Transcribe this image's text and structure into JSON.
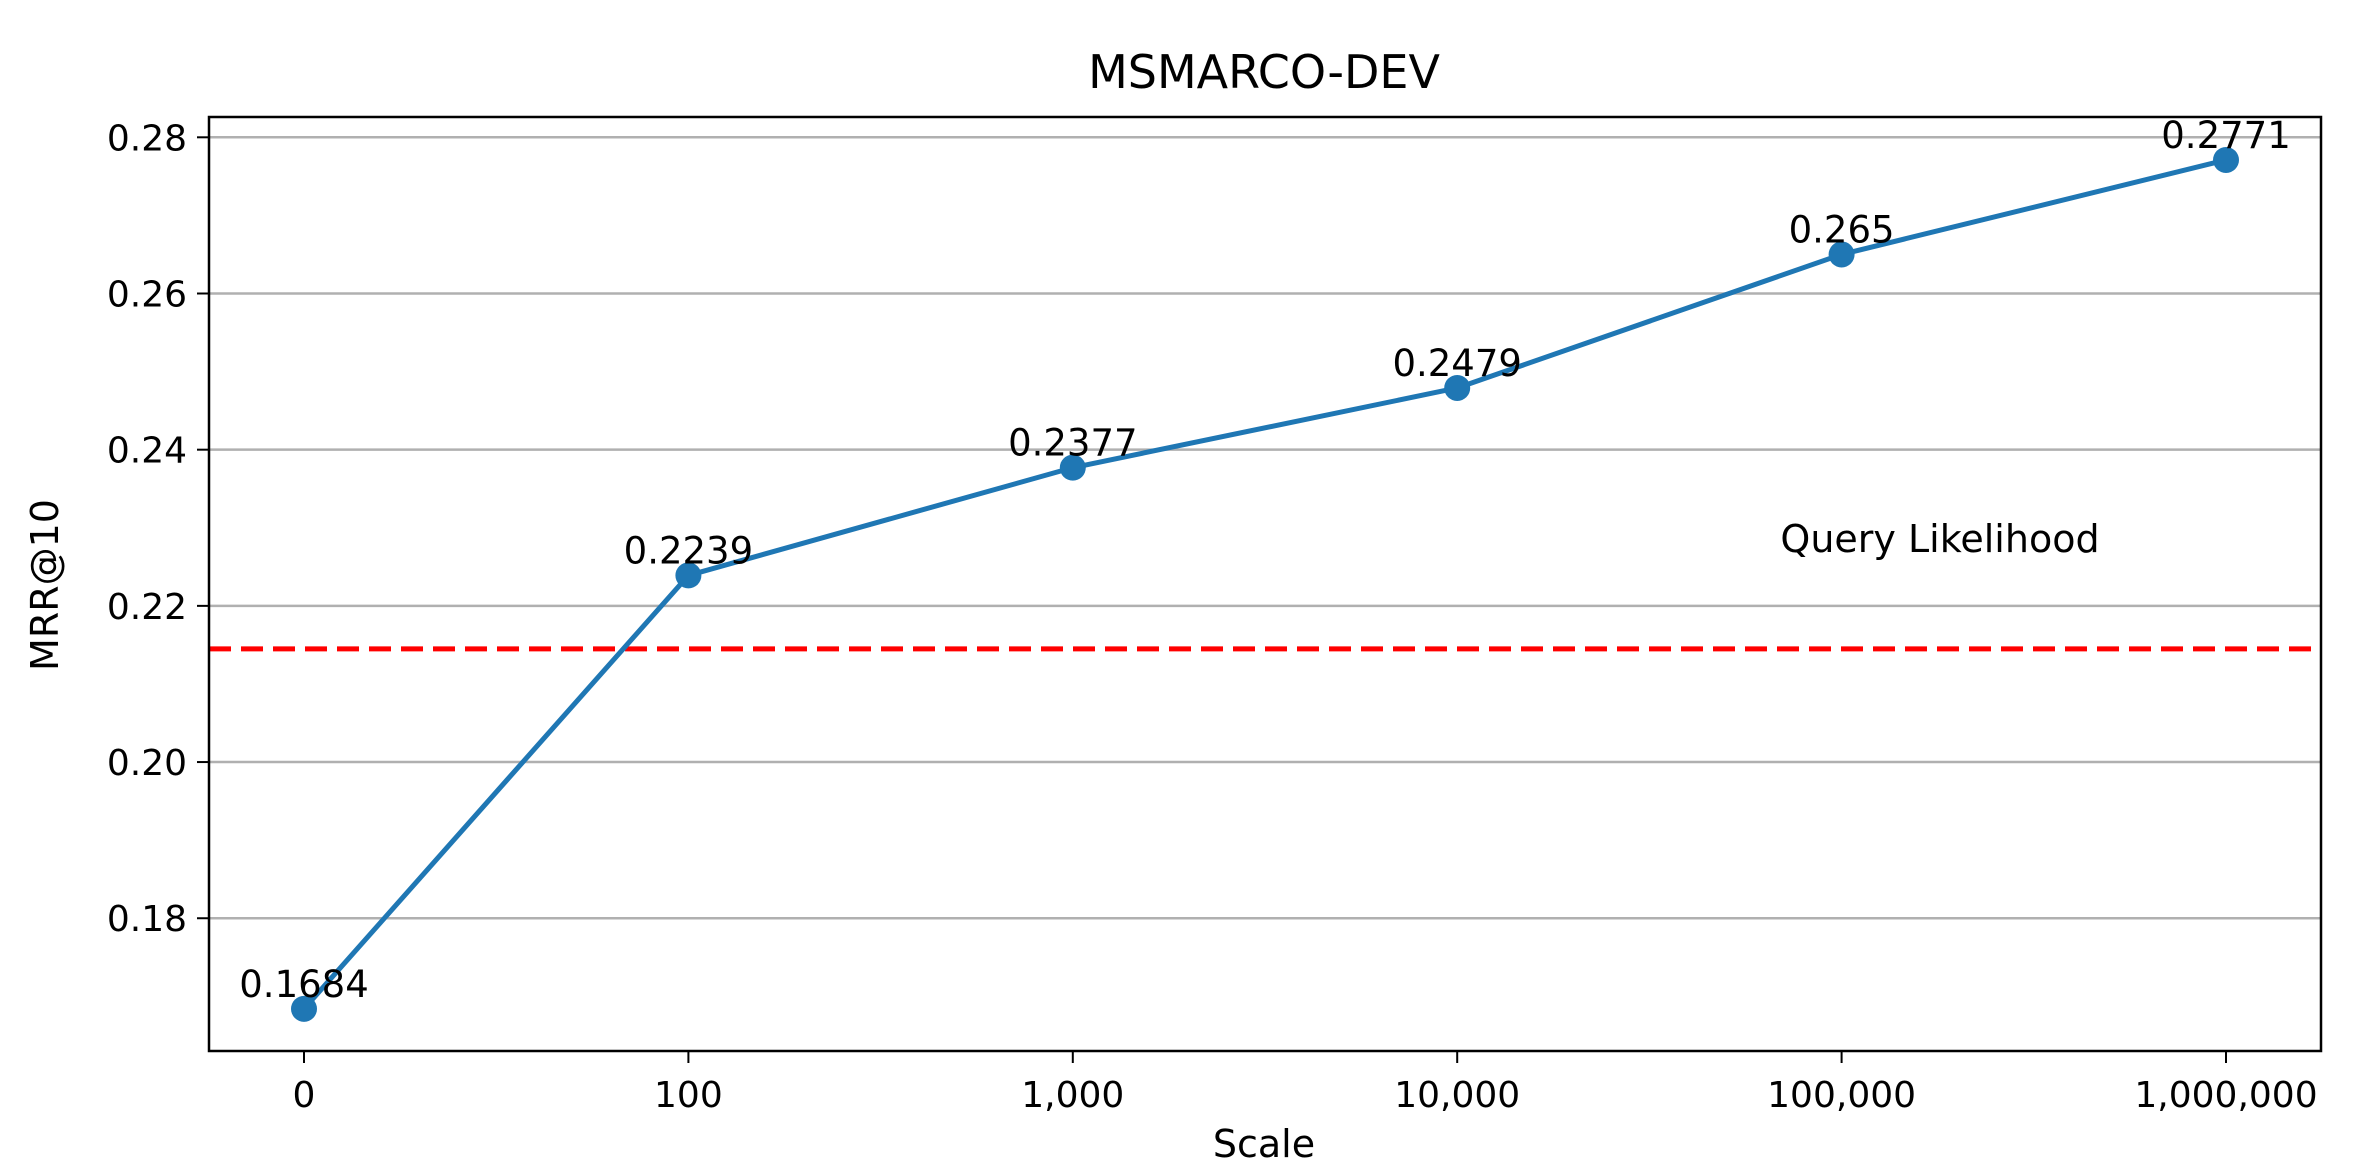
{
  "chart_data": {
    "type": "line",
    "title": "MSMARCO-DEV",
    "xlabel": "Scale",
    "ylabel": "MRR@10",
    "categories": [
      "0",
      "100",
      "1,000",
      "10,000",
      "100,000",
      "1,000,000"
    ],
    "series": [
      {
        "name": "Scale",
        "color": "#1f77b4",
        "values": [
          0.1684,
          0.2239,
          0.2377,
          0.2479,
          0.265,
          0.2771
        ],
        "labels": [
          "0.1684",
          "0.2239",
          "0.2377",
          "0.2479",
          "0.265",
          "0.2771"
        ]
      }
    ],
    "reference_line": {
      "name": "Query Likelihood",
      "value": 0.2145,
      "color": "#ff0000",
      "style": "dashed"
    },
    "annotation": "Query Likelihood",
    "ylim": [
      0.163,
      0.2826
    ],
    "yticks": [
      0.18,
      0.2,
      0.22,
      0.24,
      0.26,
      0.28
    ],
    "ytick_labels": [
      "0.18",
      "0.20",
      "0.22",
      "0.24",
      "0.26",
      "0.28"
    ],
    "grid": "horizontal",
    "grid_color": "#b0b0b0"
  }
}
